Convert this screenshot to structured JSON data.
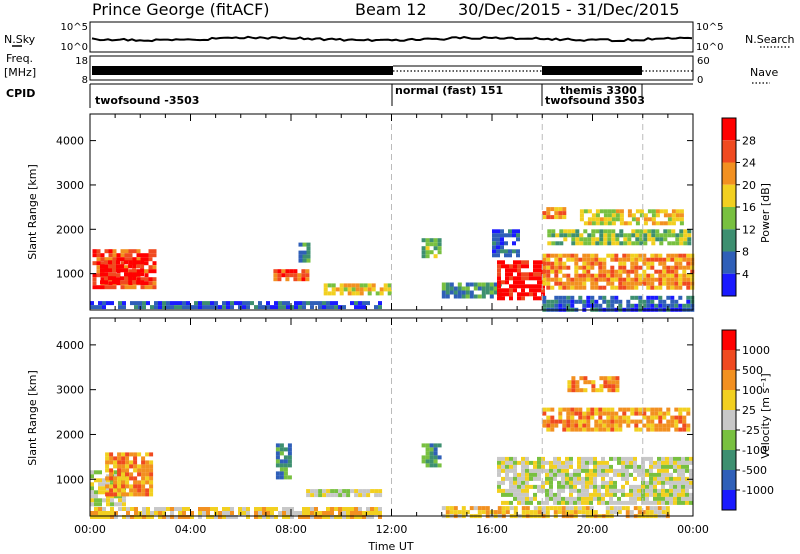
{
  "header": {
    "station": "Prince George (fitACF)",
    "beam": "Beam 12",
    "date_range": "30/Dec/2015 - 31/Dec/2015"
  },
  "strips": {
    "nsky_label": "N.Sky",
    "nsky_ticks": [
      "10^5",
      "10^0"
    ],
    "nsearch_label": "N.Search",
    "nsearch_ticks": [
      "10^5",
      "10^0"
    ],
    "freq_label_1": "Freq.",
    "freq_label_2": "[MHz]",
    "freq_ticks": [
      "18",
      "8"
    ],
    "nave_label": "Nave",
    "nave_ticks": [
      "60",
      "0"
    ],
    "cpid_label": "CPID"
  },
  "modes": [
    {
      "name": "twofsound",
      "cpid": "-3503",
      "start": 0,
      "end": 12
    },
    {
      "name": "normal (fast)",
      "cpid": "151",
      "start": 12,
      "end": 18
    },
    {
      "name": "themis",
      "cpid": "3300",
      "start": 18,
      "end": 22
    },
    {
      "name": "twofsound",
      "cpid": "3503",
      "start": 18,
      "end": 24
    }
  ],
  "chart_data": [
    {
      "type": "heatmap",
      "panel": "power",
      "ylabel": "Slant Range [km]",
      "xlabel": "",
      "yticks": [
        1000,
        2000,
        3000,
        4000
      ],
      "ylim": [
        180,
        4600
      ],
      "xlim": [
        0,
        24
      ],
      "colorbar_label": "Power [dB]",
      "colorbar_ticks": [
        "28",
        "24",
        "20",
        "16",
        "12",
        "8",
        "4"
      ],
      "colors": [
        "#1a1aff",
        "#2f5fb8",
        "#3d8f70",
        "#78c040",
        "#f2d020",
        "#f29020",
        "#f04a20",
        "#ff0000"
      ],
      "patches": [
        {
          "t0": 0.1,
          "t1": 2.5,
          "r0": 650,
          "r1": 1550,
          "level": 6
        },
        {
          "t0": 0.4,
          "t1": 2.0,
          "r0": 800,
          "r1": 1300,
          "level": 7
        },
        {
          "t0": 0.0,
          "t1": 11.5,
          "r0": 200,
          "r1": 380,
          "level": 1
        },
        {
          "t0": 7.3,
          "t1": 8.6,
          "r0": 900,
          "r1": 1100,
          "level": 6
        },
        {
          "t0": 8.3,
          "t1": 8.7,
          "r0": 1300,
          "r1": 1700,
          "level": 2
        },
        {
          "t0": 9.3,
          "t1": 12.0,
          "r0": 550,
          "r1": 780,
          "level": 4
        },
        {
          "t0": 13.2,
          "t1": 13.9,
          "r0": 1400,
          "r1": 1800,
          "level": 3
        },
        {
          "t0": 14.0,
          "t1": 16.3,
          "r0": 450,
          "r1": 800,
          "level": 2
        },
        {
          "t0": 16.2,
          "t1": 18.0,
          "r0": 450,
          "r1": 1300,
          "level": 7
        },
        {
          "t0": 16.0,
          "t1": 17.0,
          "r0": 1400,
          "r1": 2000,
          "level": 1
        },
        {
          "t0": 18.0,
          "t1": 23.9,
          "r0": 700,
          "r1": 1450,
          "level": 5
        },
        {
          "t0": 18.2,
          "t1": 23.9,
          "r0": 1650,
          "r1": 2000,
          "level": 3
        },
        {
          "t0": 18.0,
          "t1": 18.8,
          "r0": 2250,
          "r1": 2500,
          "level": 5
        },
        {
          "t0": 19.5,
          "t1": 23.5,
          "r0": 2100,
          "r1": 2450,
          "level": 4
        },
        {
          "t0": 18.0,
          "t1": 23.9,
          "r0": 200,
          "r1": 500,
          "level": 1
        }
      ]
    },
    {
      "type": "heatmap",
      "panel": "velocity",
      "ylabel": "Slant Range [km]",
      "xlabel": "Time UT",
      "yticks": [
        1000,
        2000,
        3000,
        4000
      ],
      "xticks": [
        "00:00",
        "04:00",
        "08:00",
        "12:00",
        "16:00",
        "20:00",
        "00:00"
      ],
      "ylim": [
        180,
        4600
      ],
      "xlim": [
        0,
        24
      ],
      "colorbar_label": "Velocity [m s⁻¹]",
      "colorbar_ticks": [
        "1000",
        "500",
        "100",
        "25",
        "-25",
        "-100",
        "-500",
        "-1000"
      ],
      "colors": [
        "#1a1aff",
        "#2f5fb8",
        "#3d8f70",
        "#78c040",
        "#c8c8c8",
        "#f2d020",
        "#f29020",
        "#f04a20",
        "#ff0000"
      ],
      "patches": [
        {
          "t0": 0.0,
          "t1": 1.4,
          "r0": 400,
          "r1": 1200,
          "level": 4
        },
        {
          "t0": 0.6,
          "t1": 2.5,
          "r0": 700,
          "r1": 1600,
          "level": 6
        },
        {
          "t0": 0.0,
          "t1": 11.5,
          "r0": 200,
          "r1": 380,
          "level": 5
        },
        {
          "t0": 7.4,
          "t1": 8.0,
          "r0": 1000,
          "r1": 1800,
          "level": 2
        },
        {
          "t0": 8.6,
          "t1": 11.5,
          "r0": 650,
          "r1": 780,
          "level": 4
        },
        {
          "t0": 13.2,
          "t1": 13.9,
          "r0": 1300,
          "r1": 1800,
          "level": 2
        },
        {
          "t0": 16.2,
          "t1": 23.9,
          "r0": 450,
          "r1": 1500,
          "level": 4
        },
        {
          "t0": 18.0,
          "t1": 23.8,
          "r0": 2100,
          "r1": 2600,
          "level": 6
        },
        {
          "t0": 19.0,
          "t1": 21.0,
          "r0": 3000,
          "r1": 3300,
          "level": 6
        },
        {
          "t0": 14.0,
          "t1": 23.0,
          "r0": 200,
          "r1": 400,
          "level": 5
        }
      ]
    }
  ]
}
